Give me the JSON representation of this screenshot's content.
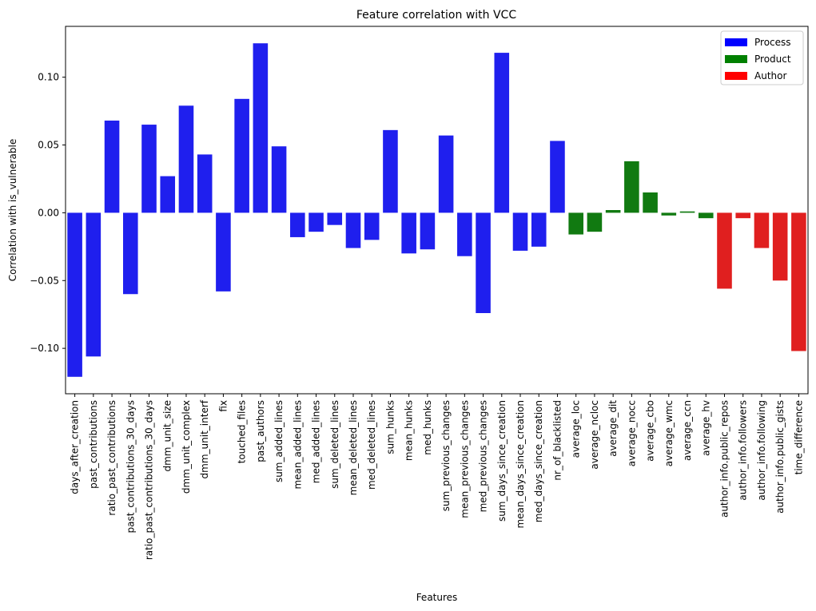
{
  "chart_data": {
    "type": "bar",
    "title": "Feature correlation with VCC",
    "xlabel": "Features",
    "ylabel": "Correlation with is_vulnerable",
    "ylim": [
      -0.1335,
      0.1375
    ],
    "yticks": [
      -0.1,
      -0.05,
      0.0,
      0.05,
      0.1
    ],
    "ytick_labels": [
      "−0.10",
      "−0.05",
      "0.00",
      "0.05",
      "0.10"
    ],
    "grid": false,
    "legend": {
      "placement": "top-right",
      "entries": [
        {
          "label": "Process",
          "color": "#0000ff"
        },
        {
          "label": "Product",
          "color": "#008000"
        },
        {
          "label": "Author",
          "color": "#ff0000"
        }
      ]
    },
    "group_colors": {
      "Process": "#1f1fee",
      "Product": "#117a11",
      "Author": "#e01f1f"
    },
    "categories": [
      "days_after_creation",
      "past_contributions",
      "ratio_past_contributions",
      "past_contributions_30_days",
      "ratio_past_contributions_30_days",
      "dmm_unit_size",
      "dmm_unit_complex",
      "dmm_unit_interf",
      "fix",
      "touched_files",
      "past_authors",
      "sum_added_lines",
      "mean_added_lines",
      "med_added_lines",
      "sum_deleted_lines",
      "mean_deleted_lines",
      "med_deleted_lines",
      "sum_hunks",
      "mean_hunks",
      "med_hunks",
      "sum_previous_changes",
      "mean_previous_changes",
      "med_previous_changes",
      "sum_days_since_creation",
      "mean_days_since_creation",
      "med_days_since_creation",
      "nr_of_blacklisted",
      "average_loc",
      "average_ncloc",
      "average_dit",
      "average_nocc",
      "average_cbo",
      "average_wmc",
      "average_ccn",
      "average_hv",
      "author_info.public_repos",
      "author_info.followers",
      "author_info.following",
      "author_info.public_gists",
      "time_difference"
    ],
    "values": [
      -0.121,
      -0.106,
      0.068,
      -0.06,
      0.065,
      0.027,
      0.079,
      0.043,
      -0.058,
      0.084,
      0.125,
      0.049,
      -0.018,
      -0.014,
      -0.009,
      -0.026,
      -0.02,
      0.061,
      -0.03,
      -0.027,
      0.057,
      -0.032,
      -0.074,
      0.118,
      -0.028,
      -0.025,
      0.053,
      -0.016,
      -0.014,
      0.002,
      0.038,
      0.015,
      -0.002,
      0.001,
      -0.004,
      -0.056,
      -0.004,
      -0.026,
      -0.05,
      -0.102
    ],
    "groups": [
      "Process",
      "Process",
      "Process",
      "Process",
      "Process",
      "Process",
      "Process",
      "Process",
      "Process",
      "Process",
      "Process",
      "Process",
      "Process",
      "Process",
      "Process",
      "Process",
      "Process",
      "Process",
      "Process",
      "Process",
      "Process",
      "Process",
      "Process",
      "Process",
      "Process",
      "Process",
      "Process",
      "Product",
      "Product",
      "Product",
      "Product",
      "Product",
      "Product",
      "Product",
      "Product",
      "Author",
      "Author",
      "Author",
      "Author",
      "Author"
    ]
  }
}
